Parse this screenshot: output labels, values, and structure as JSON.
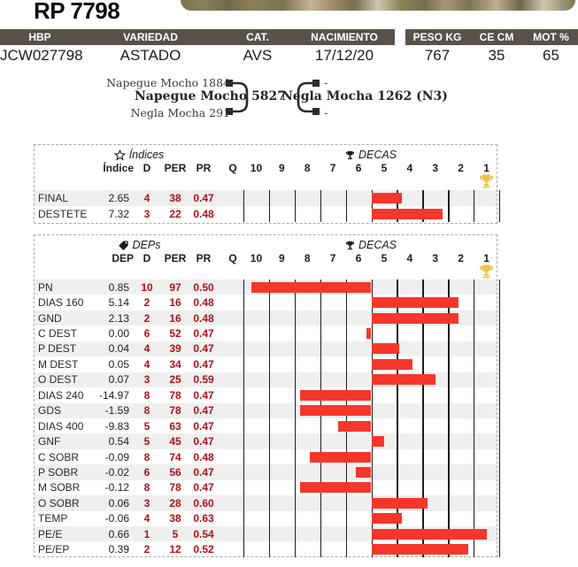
{
  "page": {
    "title": "RP 7798"
  },
  "id_table": {
    "left": {
      "headers": [
        "HBP",
        "VARIEDAD",
        "CAT.",
        "NACIMIENTO"
      ],
      "values": [
        "JCW027798",
        "ASTADO",
        "AVS",
        "17/12/20"
      ]
    },
    "right": {
      "headers": [
        "PESO KG",
        "CE CM",
        "MOT %"
      ],
      "values": [
        "767",
        "35",
        "65"
      ]
    }
  },
  "pedigree": {
    "sire": "Napegue Mocho 5827",
    "sire_sire": "Napegue Mocho 1884",
    "sire_dam": "Negla Mocha 291",
    "dam": "Negla Mocha 1262 (N3)",
    "dam_sire": "-",
    "dam_dam": "-"
  },
  "icons": {
    "indices": "star-outline-icon",
    "deps": "tag-icon",
    "decas": "trophy-icon",
    "rank_one_marker": "gold-trophy-icon"
  },
  "colors": {
    "header_bar": "#59524b",
    "bar_red": "#f5372b",
    "text_red": "#b01217",
    "row_alt": "#efefef",
    "trophy_gold": "#f0c24b"
  },
  "chart_data": [
    {
      "type": "bar",
      "title": "Índices",
      "decas_title": "DECAS",
      "columns": [
        "Índice",
        "D",
        "PER",
        "PR",
        "Q"
      ],
      "decas_scale": [
        "10",
        "9",
        "8",
        "7",
        "6",
        "5",
        "4",
        "3",
        "2",
        "1"
      ],
      "bar_rule": "horizontal red bar drawn from the PER=50 centerline to the animal's PER percentile on the 10..1 decile axis",
      "rows": [
        {
          "label": "FINAL",
          "value": "2.65",
          "d": 4,
          "per": 38,
          "pr": "0.47"
        },
        {
          "label": "DESTETE",
          "value": "7.32",
          "d": 3,
          "per": 22,
          "pr": "0.48"
        }
      ]
    },
    {
      "type": "bar",
      "title": "DEPs",
      "decas_title": "DECAS",
      "columns": [
        "DEP",
        "D",
        "PER",
        "PR",
        "Q"
      ],
      "decas_scale": [
        "10",
        "9",
        "8",
        "7",
        "6",
        "5",
        "4",
        "3",
        "2",
        "1"
      ],
      "bar_rule": "horizontal red bar drawn from the PER=50 centerline to the animal's PER percentile on the 10..1 decile axis",
      "rows": [
        {
          "label": "PN",
          "value": "0.85",
          "d": 10,
          "per": 97,
          "pr": "0.50"
        },
        {
          "label": "DIAS 160",
          "value": "5.14",
          "d": 2,
          "per": 16,
          "pr": "0.48"
        },
        {
          "label": "GND",
          "value": "2.13",
          "d": 2,
          "per": 16,
          "pr": "0.48"
        },
        {
          "label": "C DEST",
          "value": "0.00",
          "d": 6,
          "per": 52,
          "pr": "0.47"
        },
        {
          "label": "P DEST",
          "value": "0.04",
          "d": 4,
          "per": 39,
          "pr": "0.47"
        },
        {
          "label": "M DEST",
          "value": "0.05",
          "d": 4,
          "per": 34,
          "pr": "0.47"
        },
        {
          "label": "O DEST",
          "value": "0.07",
          "d": 3,
          "per": 25,
          "pr": "0.59"
        },
        {
          "label": "DIAS 240",
          "value": "-14.97",
          "d": 8,
          "per": 78,
          "pr": "0.47"
        },
        {
          "label": "GDS",
          "value": "-1.59",
          "d": 8,
          "per": 78,
          "pr": "0.47"
        },
        {
          "label": "DIAS 400",
          "value": "-9.83",
          "d": 5,
          "per": 63,
          "pr": "0.47"
        },
        {
          "label": "GNF",
          "value": "0.54",
          "d": 5,
          "per": 45,
          "pr": "0.47"
        },
        {
          "label": "C SOBR",
          "value": "-0.09",
          "d": 8,
          "per": 74,
          "pr": "0.48"
        },
        {
          "label": "P SOBR",
          "value": "-0.02",
          "d": 6,
          "per": 56,
          "pr": "0.47"
        },
        {
          "label": "M SOBR",
          "value": "-0.12",
          "d": 8,
          "per": 78,
          "pr": "0.47"
        },
        {
          "label": "O SOBR",
          "value": "0.06",
          "d": 3,
          "per": 28,
          "pr": "0.60"
        },
        {
          "label": "TEMP",
          "value": "-0.06",
          "d": 4,
          "per": 38,
          "pr": "0.63"
        },
        {
          "label": "PE/E",
          "value": "0.66",
          "d": 1,
          "per": 5,
          "pr": "0.54"
        },
        {
          "label": "PE/EP",
          "value": "0.39",
          "d": 2,
          "per": 12,
          "pr": "0.52"
        }
      ]
    }
  ]
}
